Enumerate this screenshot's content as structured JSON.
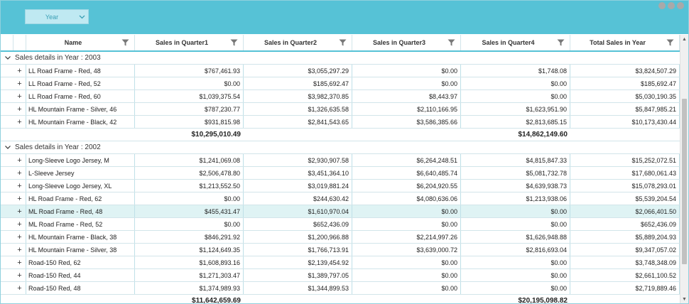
{
  "toolbar": {
    "group_chip_label": "Year"
  },
  "columns": [
    "Name",
    "Sales in Quarter1",
    "Sales in Quarter2",
    "Sales in Quarter3",
    "Sales in Quarter4",
    "Total Sales in Year"
  ],
  "groups": [
    {
      "title": "Sales details in Year : 2003",
      "rows": [
        [
          "LL Road Frame - Red, 48",
          "$767,461.93",
          "$3,055,297.29",
          "$0.00",
          "$1,748.08",
          "$3,824,507.29"
        ],
        [
          "LL Road Frame - Red, 52",
          "$0.00",
          "$185,692.47",
          "$0.00",
          "$0.00",
          "$185,692.47"
        ],
        [
          "LL Road Frame - Red, 60",
          "$1,039,375.54",
          "$3,982,370.85",
          "$8,443.97",
          "$0.00",
          "$5,030,190.35"
        ],
        [
          "HL Mountain Frame - Silver, 46",
          "$787,230.77",
          "$1,326,635.58",
          "$2,110,166.95",
          "$1,623,951.90",
          "$5,847,985.21"
        ],
        [
          "HL Mountain Frame - Black, 42",
          "$931,815.98",
          "$2,841,543.65",
          "$3,586,385.66",
          "$2,813,685.15",
          "$10,173,430.44"
        ]
      ],
      "summary_q1": "$10,295,010.49",
      "summary_q4": "$14,862,149.60"
    },
    {
      "title": "Sales details in Year : 2002",
      "rows": [
        [
          "Long-Sleeve Logo Jersey, M",
          "$1,241,069.08",
          "$2,930,907.58",
          "$6,264,248.51",
          "$4,815,847.33",
          "$15,252,072.51"
        ],
        [
          "L-Sleeve Jersey",
          "$2,506,478.80",
          "$3,451,364.10",
          "$6,640,485.74",
          "$5,081,732.78",
          "$17,680,061.43"
        ],
        [
          "Long-Sleeve Logo Jersey, XL",
          "$1,213,552.50",
          "$3,019,881.24",
          "$6,204,920.55",
          "$4,639,938.73",
          "$15,078,293.01"
        ],
        [
          "HL Road Frame - Red, 62",
          "$0.00",
          "$244,630.42",
          "$4,080,636.06",
          "$1,213,938.06",
          "$5,539,204.54"
        ],
        [
          "ML Road Frame - Red, 48",
          "$455,431.47",
          "$1,610,970.04",
          "$0.00",
          "$0.00",
          "$2,066,401.50"
        ],
        [
          "ML Road Frame - Red, 52",
          "$0.00",
          "$652,436.09",
          "$0.00",
          "$0.00",
          "$652,436.09"
        ],
        [
          "HL Mountain Frame - Black, 38",
          "$846,291.92",
          "$1,200,966.88",
          "$2,214,997.26",
          "$1,626,948.88",
          "$5,889,204.93"
        ],
        [
          "HL Mountain Frame - Silver, 38",
          "$1,124,649.35",
          "$1,766,713.91",
          "$3,639,000.72",
          "$2,816,693.04",
          "$9,347,057.02"
        ],
        [
          "Road-150 Red, 62",
          "$1,608,893.16",
          "$2,139,454.92",
          "$0.00",
          "$0.00",
          "$3,748,348.09"
        ],
        [
          "Road-150 Red, 44",
          "$1,271,303.47",
          "$1,389,797.05",
          "$0.00",
          "$0.00",
          "$2,661,100.52"
        ],
        [
          "Road-150 Red, 48",
          "$1,374,989.93",
          "$1,344,899.53",
          "$0.00",
          "$0.00",
          "$2,719,889.46"
        ]
      ],
      "summary_q1": "$11,642,659.69",
      "summary_q4": "$20,195,098.82"
    }
  ],
  "selected_row": "ML Road Frame - Red, 48",
  "icons": {
    "expand": "+",
    "collapse": "chevron-down-icon",
    "filter": "filter-icon"
  },
  "colors": {
    "accent": "#56c2d6",
    "selected_row": "#dff3f4",
    "grid_line": "#bfe0e8"
  }
}
